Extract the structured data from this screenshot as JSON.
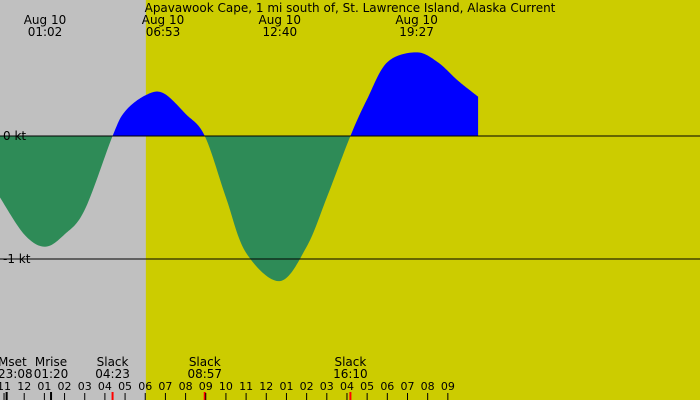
{
  "chart_data": {
    "type": "area",
    "title": "Apavawook Cape, 1 mi south of, St. Lawrence Island, Alaska Current",
    "y_unit": "kt",
    "y_tick_labels": [
      "0 kt",
      "-1 kt"
    ],
    "y_ticks": [
      0,
      -1
    ],
    "x_range_hours": [
      -1.2,
      33.5
    ],
    "y_range": [
      -2.1,
      1.1
    ],
    "night_end_hour": 6.03,
    "colors": {
      "night_bg": "#c0c0c0",
      "day_bg": "#cccc00",
      "flood": "#0000ff",
      "ebb": "#2e8b57",
      "marker": "#ff0000",
      "moon_marker": "#000000"
    },
    "series": [
      {
        "x": [
          -1.2,
          0.0,
          1.03,
          2.0,
          3.0,
          4.38,
          5.0,
          6.0,
          6.88,
          8.0,
          8.95,
          10.0,
          11.0,
          12.67,
          14.0,
          15.0,
          16.17,
          17.0,
          18.0,
          19.45,
          20.5,
          21.5,
          22.5
        ],
        "y": [
          -0.5,
          -0.8,
          -0.9,
          -0.8,
          -0.6,
          0.0,
          0.2,
          0.33,
          0.35,
          0.18,
          0.0,
          -0.5,
          -0.95,
          -1.18,
          -0.9,
          -0.5,
          0.0,
          0.3,
          0.6,
          0.68,
          0.6,
          0.45,
          0.32
        ]
      }
    ],
    "extrema": [
      {
        "date": "Aug 10",
        "time": "01:02",
        "hour": 1.03
      },
      {
        "date": "Aug 10",
        "time": "06:53",
        "hour": 6.88
      },
      {
        "date": "Aug 10",
        "time": "12:40",
        "hour": 12.67
      },
      {
        "date": "Aug 10",
        "time": "19:27",
        "hour": 19.45
      }
    ],
    "events": [
      {
        "label": "Mset",
        "time": "23:08",
        "hour": -0.87,
        "moon": true
      },
      {
        "label": "Mrise",
        "time": "01:20",
        "hour": 1.33,
        "moon": true
      },
      {
        "label": "Slack",
        "time": "04:23",
        "hour": 4.38,
        "moon": false
      },
      {
        "label": "Slack",
        "time": "08:57",
        "hour": 8.95,
        "moon": false
      },
      {
        "label": "Slack",
        "time": "16:10",
        "hour": 16.17,
        "moon": false
      }
    ],
    "hour_ticks": [
      {
        "label": "11",
        "hour": -1
      },
      {
        "label": "12",
        "hour": 0
      },
      {
        "label": "01",
        "hour": 1
      },
      {
        "label": "02",
        "hour": 2
      },
      {
        "label": "03",
        "hour": 3
      },
      {
        "label": "04",
        "hour": 4
      },
      {
        "label": "05",
        "hour": 5
      },
      {
        "label": "06",
        "hour": 6
      },
      {
        "label": "07",
        "hour": 7
      },
      {
        "label": "08",
        "hour": 8
      },
      {
        "label": "09",
        "hour": 9
      },
      {
        "label": "10",
        "hour": 10
      },
      {
        "label": "11",
        "hour": 11
      },
      {
        "label": "12",
        "hour": 12
      },
      {
        "label": "01",
        "hour": 13
      },
      {
        "label": "02",
        "hour": 14
      },
      {
        "label": "03",
        "hour": 15
      },
      {
        "label": "04",
        "hour": 16
      },
      {
        "label": "05",
        "hour": 17
      },
      {
        "label": "06",
        "hour": 18
      },
      {
        "label": "07",
        "hour": 19
      },
      {
        "label": "08",
        "hour": 20
      },
      {
        "label": "09",
        "hour": 21
      }
    ]
  }
}
